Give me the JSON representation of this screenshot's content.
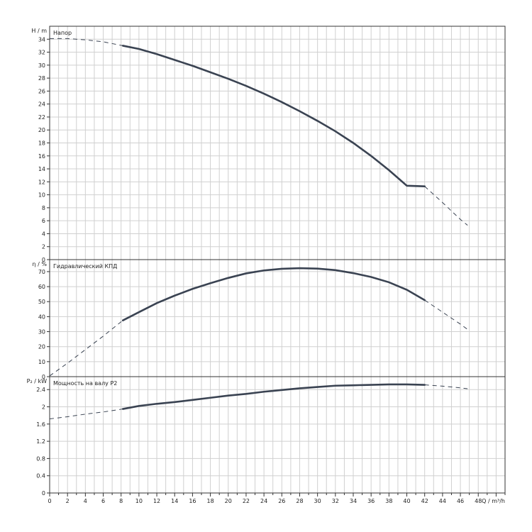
{
  "chart_data": [
    {
      "type": "line",
      "title": "Напор",
      "ylabel": "H / m",
      "xlabel": "Q / m³/h",
      "xlim": [
        0,
        51
      ],
      "ylim": [
        0,
        36
      ],
      "yticks": [
        0,
        2,
        4,
        6,
        8,
        10,
        12,
        14,
        16,
        18,
        20,
        22,
        24,
        26,
        28,
        30,
        32,
        34
      ],
      "grid": true,
      "series": [
        {
          "style": "solid",
          "x": [
            8.2,
            10,
            12,
            14,
            16,
            18,
            20,
            22,
            24,
            26,
            28,
            30,
            32,
            34,
            36,
            38,
            40,
            42
          ],
          "y": [
            33,
            32.5,
            31.7,
            30.8,
            29.9,
            28.9,
            27.9,
            26.8,
            25.6,
            24.3,
            22.9,
            21.4,
            19.8,
            18.0,
            16.0,
            13.8,
            11.4,
            11.3
          ]
        },
        {
          "style": "dashed",
          "x": [
            0,
            2,
            4,
            6,
            8.2
          ],
          "y": [
            34.1,
            34.1,
            33.9,
            33.6,
            33
          ]
        },
        {
          "style": "dashed",
          "x": [
            42,
            44,
            46,
            46.8
          ],
          "y": [
            11.3,
            8.8,
            6.2,
            5.3
          ]
        }
      ]
    },
    {
      "type": "line",
      "title": "Гидравлический КПД",
      "ylabel": "η / %",
      "xlabel": "Q / m³/h",
      "xlim": [
        0,
        51
      ],
      "ylim": [
        0,
        78
      ],
      "yticks": [
        0,
        10,
        20,
        30,
        40,
        50,
        60,
        70
      ],
      "grid": true,
      "series": [
        {
          "style": "solid",
          "x": [
            8.2,
            10,
            12,
            14,
            16,
            18,
            20,
            22,
            24,
            26,
            28,
            30,
            32,
            34,
            36,
            38,
            40,
            42
          ],
          "y": [
            37.5,
            43,
            49,
            54,
            58.5,
            62.3,
            65.8,
            68.8,
            70.8,
            71.9,
            72.3,
            72,
            71,
            69,
            66.4,
            62.9,
            57.9,
            51
          ]
        },
        {
          "style": "dashed",
          "x": [
            0,
            2,
            4,
            6,
            8.2
          ],
          "y": [
            0.5,
            9,
            18,
            27,
            37.5
          ]
        },
        {
          "style": "dashed",
          "x": [
            42,
            44,
            46,
            46.8
          ],
          "y": [
            51,
            43,
            35,
            31.5
          ]
        }
      ]
    },
    {
      "type": "line",
      "title": "Мощность на валу P2",
      "ylabel": "P₂ / kW",
      "xlabel": "Q / m³/h",
      "xlim": [
        0,
        51
      ],
      "ylim": [
        0,
        2.7
      ],
      "yticks": [
        0,
        0.4,
        0.8,
        1.2,
        1.6,
        2,
        2.4
      ],
      "grid": true,
      "series": [
        {
          "style": "solid",
          "x": [
            8.2,
            10,
            12,
            14,
            16,
            18,
            20,
            22,
            24,
            26,
            28,
            30,
            32,
            34,
            36,
            38,
            40,
            42
          ],
          "y": [
            1.95,
            2.02,
            2.07,
            2.11,
            2.16,
            2.21,
            2.26,
            2.3,
            2.35,
            2.39,
            2.43,
            2.46,
            2.49,
            2.5,
            2.51,
            2.52,
            2.52,
            2.51
          ]
        },
        {
          "style": "dashed",
          "x": [
            0,
            2,
            4,
            6,
            8.2
          ],
          "y": [
            1.72,
            1.77,
            1.83,
            1.88,
            1.95
          ]
        },
        {
          "style": "dashed",
          "x": [
            42,
            44,
            46,
            46.8
          ],
          "y": [
            2.51,
            2.48,
            2.44,
            2.42
          ]
        }
      ]
    }
  ],
  "x_axis": {
    "ticks": [
      0,
      2,
      4,
      6,
      8,
      10,
      12,
      14,
      16,
      18,
      20,
      22,
      24,
      26,
      28,
      30,
      32,
      34,
      36,
      38,
      40,
      42,
      44,
      46,
      48
    ],
    "label": "Q / m³/h"
  },
  "colors": {
    "curve": "#3a4352",
    "grid": "#d0d0d0",
    "frame": "#333333",
    "text": "#222222"
  }
}
